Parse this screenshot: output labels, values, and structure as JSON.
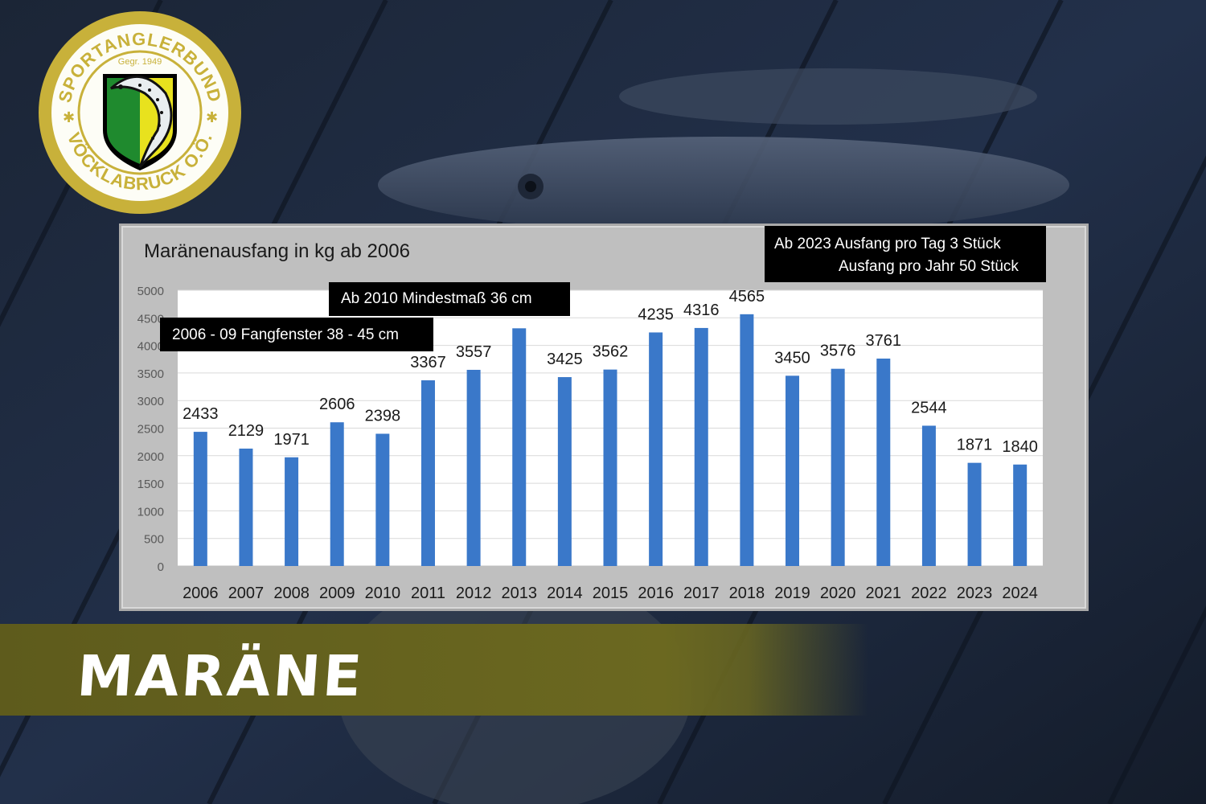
{
  "logo": {
    "top_text": "SPORTANGLERBUND",
    "founded": "Gegr. 1949",
    "bottom_text": "VÖCKLABRUCK O.Ö.",
    "colors": {
      "ring": "#c8b13a",
      "shield_green": "#1f8a2e",
      "shield_yellow": "#e8e21e"
    }
  },
  "notes": {
    "mindest": "Ab 2010  Mindestmaß  36 cm",
    "window": "2006  - 09 Fangfenster 38 - 45 cm",
    "limit_line1": "Ab 2023  Ausfang pro Tag     3 Stück",
    "limit_line2": "Ausfang pro Jahr 50 Stück"
  },
  "banner": {
    "title": "MARÄNE"
  },
  "chart_data": {
    "type": "bar",
    "title": "Maränenausfang in kg ab 2006",
    "xlabel": "",
    "ylabel": "",
    "categories": [
      "2006",
      "2007",
      "2008",
      "2009",
      "2010",
      "2011",
      "2012",
      "2013",
      "2014",
      "2015",
      "2016",
      "2017",
      "2018",
      "2019",
      "2020",
      "2021",
      "2022",
      "2023",
      "2024"
    ],
    "values": [
      2433,
      2129,
      1971,
      2606,
      2398,
      3367,
      3557,
      4310,
      3425,
      3562,
      4235,
      4316,
      4565,
      3450,
      3576,
      3761,
      2544,
      1871,
      1840
    ],
    "data_labels": [
      "2433",
      "2129",
      "1971",
      "2606",
      "2398",
      "3367",
      "3557",
      "",
      "3425",
      "3562",
      "4235",
      "4316",
      "4565",
      "3450",
      "3576",
      "3761",
      "2544",
      "1871",
      "1840"
    ],
    "yticks": [
      0,
      500,
      1000,
      1500,
      2000,
      2500,
      3000,
      3500,
      4000,
      4500,
      5000
    ],
    "ylim": [
      0,
      5000
    ],
    "grid": true,
    "bar_color": "#3a78c9"
  }
}
